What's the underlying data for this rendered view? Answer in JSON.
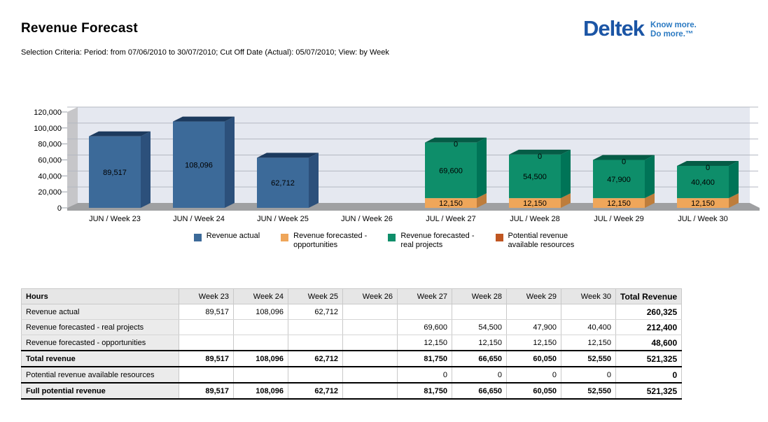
{
  "page": {
    "title": "Revenue Forecast",
    "selection_criteria": "Selection Criteria: Period: from 07/06/2010 to 30/07/2010; Cut Off Date (Actual): 05/07/2010; View: by Week"
  },
  "logo": {
    "brand": "Deltek",
    "tagline_line1": "Know more.",
    "tagline_line2": "Do more.™",
    "brand_color": "#1b55a5",
    "tagline_color": "#2b7ac2"
  },
  "chart_data": {
    "type": "bar",
    "stacked": true,
    "grid": true,
    "legend_position": "bottom",
    "title": "",
    "xlabel": "",
    "ylabel": "",
    "ylim": [
      0,
      120000
    ],
    "ytick_interval": 20000,
    "ytick_labels": [
      "0",
      "20,000",
      "40,000",
      "60,000",
      "80,000",
      "100,000",
      "120,000"
    ],
    "categories": [
      "JUN / Week 23",
      "JUN / Week 24",
      "JUN / Week 25",
      "JUN / Week 26",
      "JUL / Week 27",
      "JUL / Week 28",
      "JUL / Week 29",
      "JUL / Week 30"
    ],
    "series": [
      {
        "name": "Revenue actual",
        "color": "#3c6a99",
        "side_color": "#2c507b",
        "top_color": "#1c3a5e",
        "values": [
          89517,
          108096,
          62712,
          null,
          null,
          null,
          null,
          null
        ]
      },
      {
        "name": "Revenue forecasted - opportunities",
        "color": "#efa65a",
        "side_color": "#be7d3c",
        "top_color": "#d08a42",
        "values": [
          null,
          null,
          null,
          null,
          12150,
          12150,
          12150,
          12150
        ]
      },
      {
        "name": "Revenue forecasted - real projects",
        "color": "#0e8e6a",
        "side_color": "#007457",
        "top_color": "#055c46",
        "values": [
          null,
          null,
          null,
          null,
          69600,
          54500,
          47900,
          40400
        ]
      },
      {
        "name": "Potential revenue available resources",
        "color": "#c05621",
        "side_color": "#8f3e15",
        "top_color": "#7c350f",
        "values": [
          null,
          null,
          null,
          null,
          0,
          0,
          0,
          0
        ]
      }
    ],
    "colors": {
      "plot_bg": "#e5e8f0",
      "left_wall": "#c6c6c9",
      "floor": "#9fa0a2",
      "gridline": "#b4b8c2",
      "tick": "#9aa0aa"
    }
  },
  "legend": {
    "items": [
      {
        "name": "revenue-actual",
        "color": "#3c6a99",
        "line1": "Revenue actual",
        "line2": ""
      },
      {
        "name": "revenue-forecasted-opportunities",
        "color": "#efa65a",
        "line1": "Revenue forecasted -",
        "line2": "opportunities"
      },
      {
        "name": "revenue-forecasted-real-projects",
        "color": "#0e8e6a",
        "line1": "Revenue forecasted -",
        "line2": "real projects"
      },
      {
        "name": "potential-revenue-available-resources",
        "color": "#c05621",
        "line1": "Potential revenue",
        "line2": "available resources"
      }
    ]
  },
  "table": {
    "header": [
      "Hours",
      "Week 23",
      "Week 24",
      "Week 25",
      "Week 26",
      "Week 27",
      "Week 28",
      "Week 29",
      "Week 30",
      "Total Revenue"
    ],
    "rows": [
      {
        "label": "Revenue actual",
        "bold": false,
        "values": [
          "89,517",
          "108,096",
          "62,712",
          "",
          "",
          "",
          "",
          ""
        ],
        "total": "260,325"
      },
      {
        "label": "Revenue forecasted - real projects",
        "bold": false,
        "values": [
          "",
          "",
          "",
          "",
          "69,600",
          "54,500",
          "47,900",
          "40,400"
        ],
        "total": "212,400"
      },
      {
        "label": "Revenue forecasted - opportunities",
        "bold": false,
        "values": [
          "",
          "",
          "",
          "",
          "12,150",
          "12,150",
          "12,150",
          "12,150"
        ],
        "total": "48,600"
      },
      {
        "label": "Total revenue",
        "bold": true,
        "values": [
          "89,517",
          "108,096",
          "62,712",
          "",
          "81,750",
          "66,650",
          "60,050",
          "52,550"
        ],
        "total": "521,325"
      },
      {
        "label": "Potential revenue available resources",
        "bold": false,
        "values": [
          "",
          "",
          "",
          "",
          "0",
          "0",
          "0",
          "0"
        ],
        "total": "0"
      },
      {
        "label": "Full potential revenue",
        "bold": true,
        "values": [
          "89,517",
          "108,096",
          "62,712",
          "",
          "81,750",
          "66,650",
          "60,050",
          "52,550"
        ],
        "total": "521,325"
      }
    ]
  }
}
